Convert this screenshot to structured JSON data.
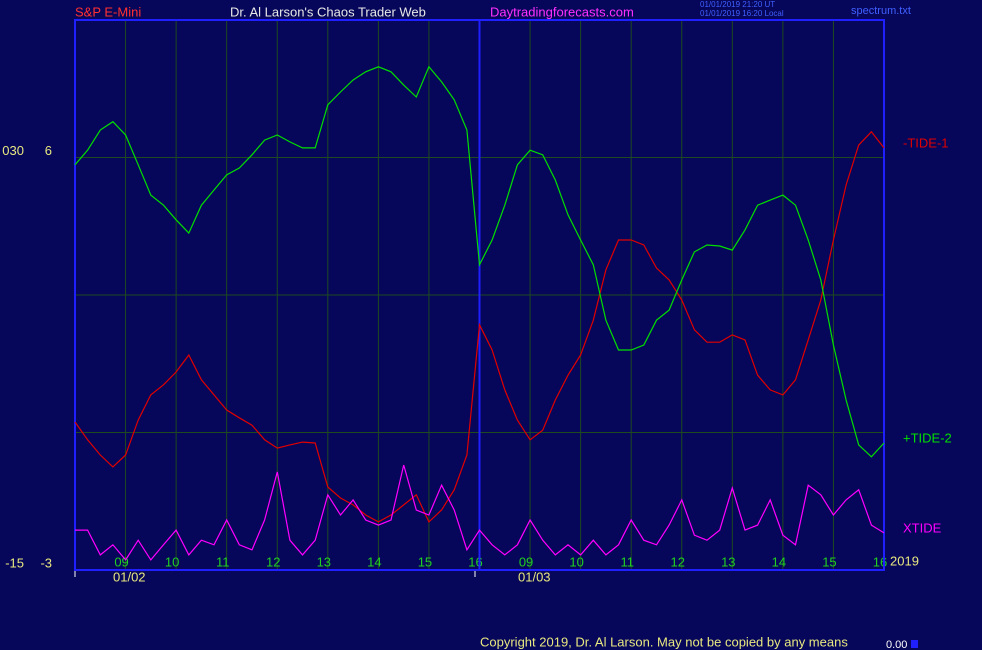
{
  "chart_data": {
    "type": "line",
    "instrument": "S&P E-Mini",
    "title": "Dr. Al Larson's Chaos Trader Web",
    "website": "Daytradingforecasts.com",
    "timestamps": [
      "01/01/2019 21:20 UT",
      "01/01/2019 16:20 Local"
    ],
    "file": "spectrum.txt",
    "footer": "Copyright 2019, Dr. Al Larson. May not be copied by any means",
    "corner_value": "0.00",
    "days": [
      "01/02",
      "01/03"
    ],
    "year": "2019",
    "categories": [
      null,
      null,
      null,
      null,
      "09",
      null,
      null,
      null,
      "10",
      null,
      null,
      null,
      "11",
      null,
      null,
      null,
      "12",
      null,
      null,
      null,
      "13",
      null,
      null,
      null,
      "14",
      null,
      null,
      null,
      "15",
      null,
      null,
      null,
      "16",
      null,
      null,
      null,
      "09",
      null,
      null,
      null,
      "10",
      null,
      null,
      null,
      "11",
      null,
      null,
      null,
      "12",
      null,
      null,
      null,
      "13",
      null,
      null,
      null,
      "14",
      null,
      null,
      null,
      "15",
      null,
      null,
      null,
      "16"
    ],
    "ylim": [
      -3,
      9
    ],
    "yticks": [
      -3,
      {
        "value": 0,
        "label": null
      },
      {
        "value": 3,
        "label": null
      },
      6
    ],
    "y2lim": [
      -15,
      45
    ],
    "y2ticks": [
      -15,
      {
        "value": 30,
        "label": "030"
      }
    ],
    "grid": true,
    "series": [
      {
        "name": "-TIDE-1",
        "color": "#e00000",
        "values": [
          0.23,
          -0.16,
          -0.49,
          -0.75,
          -0.49,
          0.27,
          0.82,
          1.04,
          1.32,
          1.69,
          1.15,
          0.82,
          0.49,
          0.32,
          0.16,
          -0.16,
          -0.34,
          -0.27,
          -0.21,
          -0.23,
          -1.19,
          -1.43,
          -1.58,
          -1.8,
          -1.95,
          -1.8,
          -1.58,
          -1.36,
          -1.95,
          -1.69,
          -1.25,
          -0.49,
          2.35,
          1.8,
          0.93,
          0.27,
          -0.16,
          0.05,
          0.71,
          1.25,
          1.69,
          2.45,
          3.55,
          4.2,
          4.2,
          4.09,
          3.59,
          3.33,
          2.89,
          2.24,
          1.97,
          1.97,
          2.13,
          2.02,
          1.25,
          0.93,
          0.82,
          1.15,
          2.02,
          2.89,
          4.2,
          5.4,
          6.27,
          6.56,
          6.21
        ]
      },
      {
        "name": "+TIDE-2",
        "color": "#00e000",
        "values": [
          5.84,
          6.16,
          6.6,
          6.78,
          6.49,
          5.84,
          5.18,
          4.96,
          4.64,
          4.35,
          4.96,
          5.29,
          5.62,
          5.77,
          6.06,
          6.38,
          6.49,
          6.34,
          6.21,
          6.21,
          7.15,
          7.43,
          7.69,
          7.87,
          7.98,
          7.87,
          7.58,
          7.32,
          7.98,
          7.65,
          7.26,
          6.6,
          3.66,
          4.2,
          4.96,
          5.84,
          6.16,
          6.06,
          5.51,
          4.75,
          4.2,
          3.66,
          2.45,
          1.8,
          1.8,
          1.91,
          2.45,
          2.67,
          3.33,
          3.94,
          4.09,
          4.07,
          3.98,
          4.42,
          4.96,
          5.07,
          5.18,
          4.96,
          4.2,
          3.33,
          1.91,
          0.71,
          -0.27,
          -0.53,
          -0.23
        ]
      },
      {
        "name": "XTIDE",
        "color": "#ff00ff",
        "values": [
          -2.13,
          -2.13,
          -2.67,
          -2.45,
          -2.78,
          -2.35,
          -2.78,
          -2.45,
          -2.13,
          -2.67,
          -2.35,
          -2.45,
          -1.91,
          -2.45,
          -2.56,
          -1.91,
          -0.86,
          -2.35,
          -2.67,
          -2.35,
          -1.36,
          -1.8,
          -1.47,
          -1.91,
          -2.02,
          -1.91,
          -0.71,
          -1.69,
          -1.8,
          -1.15,
          -1.69,
          -2.56,
          -2.13,
          -2.45,
          -2.67,
          -2.45,
          -1.91,
          -2.35,
          -2.67,
          -2.45,
          -2.67,
          -2.35,
          -2.67,
          -2.45,
          -1.91,
          -2.35,
          -2.45,
          -2.02,
          -1.47,
          -2.24,
          -2.35,
          -2.13,
          -1.21,
          -2.13,
          -2.02,
          -1.47,
          -2.24,
          -2.45,
          -1.15,
          -1.36,
          -1.8,
          -1.47,
          -1.25,
          -2.02,
          -2.19
        ]
      }
    ]
  }
}
